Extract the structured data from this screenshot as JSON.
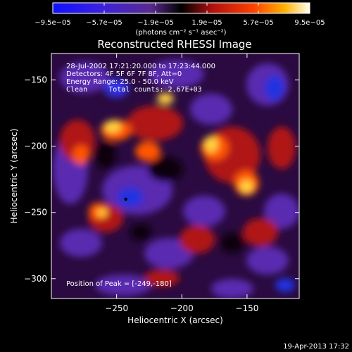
{
  "chart_data": {
    "type": "heatmap",
    "title": "Reconstructed RHESSI Image",
    "xlabel": "Heliocentric X (arcsec)",
    "ylabel": "Heliocentric Y (arcsec)",
    "xlim": [
      -300,
      -110
    ],
    "ylim": [
      -315,
      -130
    ],
    "x_ticks": [
      -250,
      -200,
      -150
    ],
    "x_tick_labels": [
      "−250",
      "−200",
      "−150"
    ],
    "y_ticks": [
      -300,
      -250,
      -200,
      -150
    ],
    "y_tick_labels": [
      "−300",
      "−250",
      "−200",
      "−150"
    ],
    "colorbar": {
      "min": -9.5e-05,
      "max": 9.5e-05,
      "tick_labels": [
        "−9.5e−05",
        "−5.7e−05",
        "−1.9e−05",
        "1.9e−05",
        "5.7e−05",
        "9.5e−05"
      ],
      "units_label": "(photons cm⁻² s⁻¹ asec⁻²)"
    },
    "annotations": {
      "time_range": "28-Jul-2002 17:21:20.000 to 17:23:44.000",
      "detectors": "Detectors: 4F 5F 6F 7F 8F, Att=0",
      "energy_range": "Energy Range: 25.0 - 50.0 keV",
      "method_counts": "Clean     Total counts: 2.67E+03",
      "peak": "Position of Peak = [-249,-180]"
    },
    "marker": {
      "x": -243,
      "y": -240
    },
    "timestamp": "19-Apr-2013 17:32"
  }
}
